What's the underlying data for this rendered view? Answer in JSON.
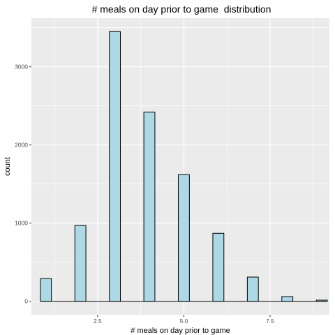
{
  "chart_data": {
    "type": "bar",
    "title": "# meals on day prior to game  distribution",
    "xlabel": "# meals on day prior to game",
    "ylabel": "count",
    "x": [
      1,
      2,
      3,
      4,
      5,
      6,
      7,
      8,
      9
    ],
    "values": [
      290,
      970,
      3450,
      2420,
      1620,
      870,
      310,
      60,
      15
    ],
    "xlim": [
      0.58,
      9.22
    ],
    "ylim": [
      -172,
      3622
    ],
    "x_ticks": [
      2.5,
      5.0,
      7.5
    ],
    "x_tick_labels": [
      "2.5",
      "5.0",
      "7.5"
    ],
    "y_ticks": [
      0,
      1000,
      2000,
      3000
    ],
    "y_tick_labels": [
      "0",
      "1000",
      "2000",
      "3000"
    ],
    "grid": true,
    "bar_fill": "#add8e6",
    "bar_stroke": "#000000",
    "panel_background": "#ebebeb",
    "grid_color": "#ffffff"
  }
}
